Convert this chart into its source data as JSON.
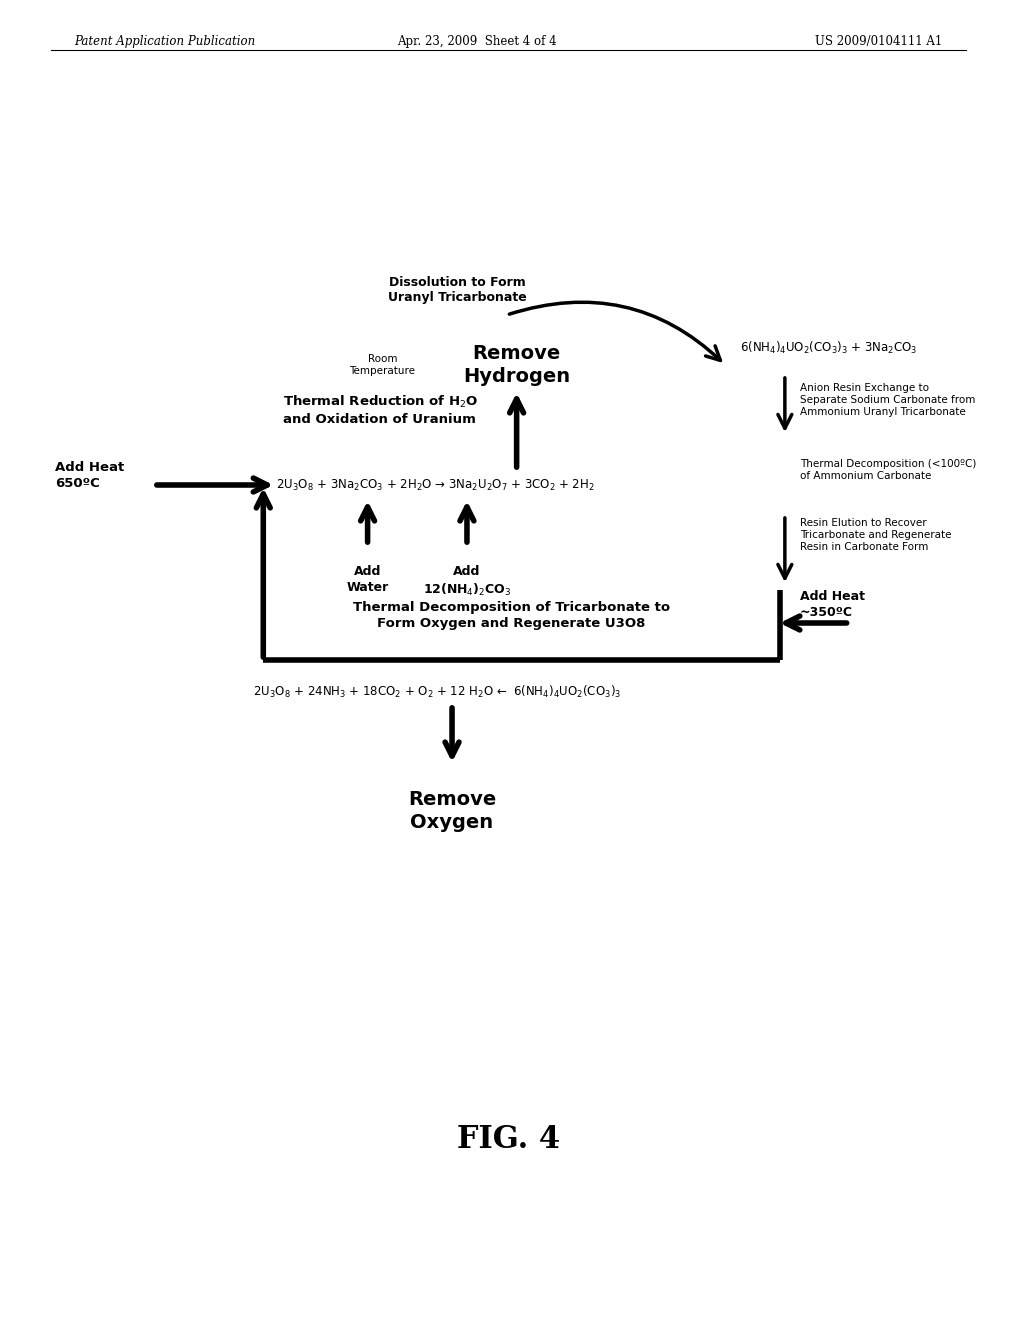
{
  "header_left": "Patent Application Publication",
  "header_center": "Apr. 23, 2009  Sheet 4 of 4",
  "header_right": "US 2009/0104111 A1",
  "fig_label": "FIG. 4",
  "bg_color": "#ffffff",
  "text_color": "#000000",
  "title_dissolution": "Dissolution to Form\nUranyl Tricarbonate",
  "eq_top_right": "6(NH$_4$)$_4$UO$_2$(CO$_3$)$_3$ + 3Na$_2$CO$_3$",
  "label_remove_hydrogen": "Remove\nHydrogen",
  "label_room_temp": "Room\nTemperature",
  "label_anion_resin": "Anion Resin Exchange to\nSeparate Sodium Carbonate from\nAmmonium Uranyl Tricarbonate",
  "label_thermal_decomp_100": "Thermal Decomposition (<100ºC)\nof Ammonium Carbonate",
  "label_resin_elution": "Resin Elution to Recover\nTricarbonate and Regenerate\nResin in Carbonate Form",
  "label_thermal_reduction": "Thermal Reduction of H$_2$O\nand Oxidation of Uranium",
  "label_add_heat_650": "Add Heat\n650ºC",
  "eq_middle": "2U$_3$O$_8$ + 3Na$_2$CO$_3$ + 2H$_2$O → 3Na$_2$U$_2$O$_7$ + 3CO$_2$ + 2H$_2$",
  "label_add_water": "Add\nWater",
  "label_add_ammonium": "Add\n12(NH$_4$)$_2$CO$_3$",
  "label_thermal_decomp_bottom": "Thermal Decomposition of Tricarbonate to\nForm Oxygen and Regenerate U3O8",
  "label_add_heat_350": "Add Heat\n~350ºC",
  "eq_bottom": "2U$_3$O$_8$ + 24NH$_3$ + 18CO$_2$ + O$_2$ + 12 H$_2$O ←  6(NH$_4$)$_4$UO$_2$(CO$_3$)$_3$",
  "label_remove_oxygen": "Remove\nOxygen"
}
